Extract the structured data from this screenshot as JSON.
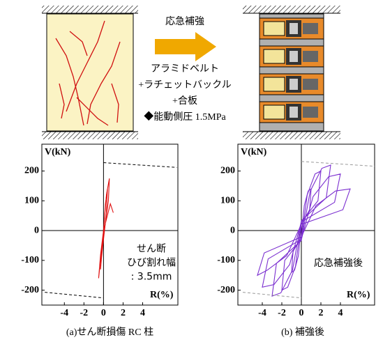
{
  "diagram": {
    "arrow_label": "応急補強",
    "notes": [
      "アラミドベルト",
      "+ラチェットバックル",
      "+合板",
      "◆能動側圧 1.5MPa"
    ]
  },
  "chart_data": [
    {
      "type": "line",
      "caption": "(a)せん断損傷 RC 柱",
      "y_label": "V(kN)",
      "x_label": "R(%)",
      "annotation": [
        "せん断",
        "ひび割れ幅",
        ": 3.5mm"
      ],
      "xlim": [
        -6.3,
        7.6
      ],
      "ylim": [
        -250,
        290
      ],
      "xticks": [
        -4,
        -2,
        0,
        2,
        4
      ],
      "yticks": [
        200,
        100,
        0,
        -100,
        -200
      ],
      "series": [
        {
          "color": "#e01010",
          "x": [
            0,
            0.3,
            0.6,
            0.5,
            0,
            -0.3,
            -0.5,
            -0.3,
            0,
            0.7,
            1.0
          ],
          "values": [
            0,
            120,
            175,
            100,
            -20,
            -100,
            -160,
            -80,
            0,
            90,
            60
          ]
        },
        {
          "color": "#e01010",
          "x": [
            0,
            0.2,
            0.4,
            0.3,
            0,
            -0.2,
            -0.3,
            -0.1,
            0
          ],
          "values": [
            0,
            90,
            140,
            60,
            -30,
            -90,
            -130,
            -40,
            0
          ]
        },
        {
          "color": "#000000",
          "dashed": true,
          "x": [
            0,
            7.5
          ],
          "values": [
            228,
            212
          ]
        },
        {
          "color": "#000000",
          "dashed": true,
          "x": [
            -6,
            0
          ],
          "values": [
            -207,
            -226
          ]
        }
      ]
    },
    {
      "type": "line",
      "caption": "(b)  補強後",
      "y_label": "V(kN)",
      "x_label": "R(%)",
      "annotation": [
        "応急補強後"
      ],
      "xlim": [
        -6.5,
        7.5
      ],
      "ylim": [
        -250,
        290
      ],
      "xticks": [
        -4,
        -2,
        0,
        2,
        4
      ],
      "yticks": [
        200,
        100,
        0,
        -100,
        -200
      ],
      "series": [
        {
          "color": "#7b2fd0",
          "x": [
            0,
            0.3,
            0.7,
            1,
            0.85,
            0,
            -0.3,
            -0.7,
            -1,
            -0.85,
            0
          ],
          "values": [
            -21,
            84,
            133,
            140,
            70,
            21,
            -84,
            -133,
            -140,
            -70,
            -21
          ]
        },
        {
          "color": "#7b2fd0",
          "x": [
            0,
            0.6,
            1.4,
            2,
            1.7,
            0,
            -0.6,
            -1.4,
            -2,
            -1.7,
            0
          ],
          "values": [
            -30,
            120,
            190,
            200,
            100,
            30,
            -120,
            -190,
            -200,
            -100,
            -30
          ]
        },
        {
          "color": "#7b2fd0",
          "x": [
            0,
            0.9,
            2.1,
            3,
            2.55,
            0,
            -0.9,
            -2.1,
            -3,
            -2.55,
            0
          ],
          "values": [
            -33,
            132,
            209,
            220,
            110,
            33,
            -132,
            -209,
            -220,
            -110,
            -33
          ]
        },
        {
          "color": "#7b2fd0",
          "x": [
            0,
            1.2,
            2.8,
            4,
            3.4,
            0,
            -1.2,
            -2.8,
            -4,
            -3.4,
            0
          ],
          "values": [
            -29,
            114,
            181,
            190,
            95,
            29,
            -114,
            -181,
            -190,
            -95,
            -29
          ]
        },
        {
          "color": "#7b2fd0",
          "x": [
            0,
            1.5,
            3.5,
            5,
            4.25,
            0,
            -1.5,
            -3.5,
            -4.5,
            -3.8,
            0
          ],
          "values": [
            -21,
            84,
            133,
            140,
            70,
            21,
            -84,
            -133,
            -150,
            -75,
            -21
          ]
        },
        {
          "color": "#999999",
          "dashed": true,
          "x": [
            0,
            7.5
          ],
          "values": [
            232,
            216
          ]
        },
        {
          "color": "#999999",
          "dashed": true,
          "x": [
            -6,
            0
          ],
          "values": [
            -207,
            -226
          ]
        }
      ]
    }
  ]
}
